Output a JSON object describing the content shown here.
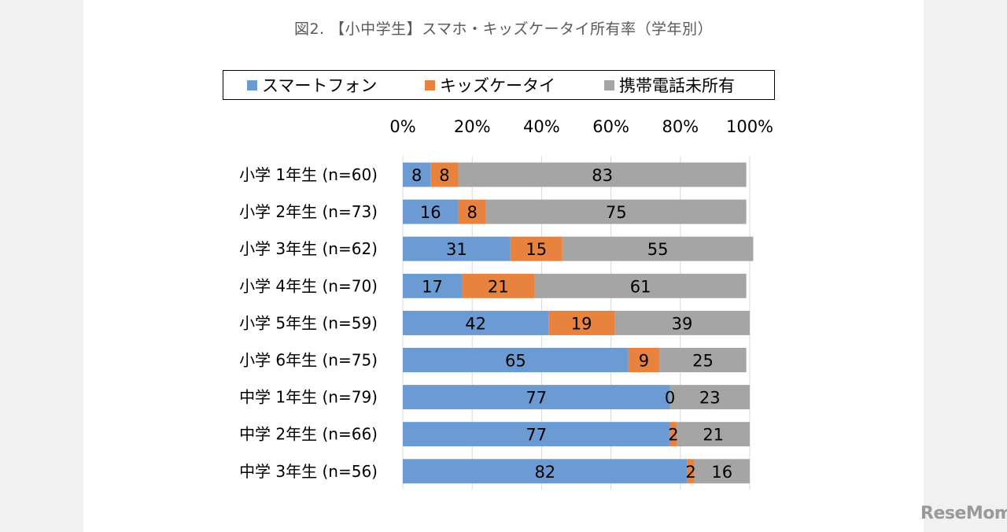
{
  "chart_data": {
    "type": "bar",
    "orientation": "horizontal",
    "stacked": true,
    "title": "図2. 【小中学生】スマホ・キッズケータイ所有率（学年別）",
    "categories": [
      "小学 1年生 (n=60)",
      "小学 2年生 (n=73)",
      "小学 3年生 (n=62)",
      "小学 4年生 (n=70)",
      "小学 5年生 (n=59)",
      "小学 6年生 (n=75)",
      "中学 1年生 (n=79)",
      "中学 2年生 (n=66)",
      "中学 3年生 (n=56)"
    ],
    "series": [
      {
        "name": "スマートフォン",
        "color": "#6b9bd2",
        "values": [
          8,
          16,
          31,
          17,
          42,
          65,
          77,
          77,
          82
        ]
      },
      {
        "name": "キッズケータイ",
        "color": "#e8823f",
        "values": [
          8,
          8,
          15,
          21,
          19,
          9,
          0,
          2,
          2
        ]
      },
      {
        "name": "携帯電話未所有",
        "color": "#a5a5a5",
        "values": [
          83,
          75,
          55,
          61,
          39,
          25,
          23,
          21,
          16
        ]
      }
    ],
    "xlim": [
      0,
      100
    ],
    "xticks": [
      "0%",
      "20%",
      "40%",
      "60%",
      "80%",
      "100%"
    ],
    "legend_position": "top",
    "grid": true
  },
  "watermark": "ReseMom"
}
